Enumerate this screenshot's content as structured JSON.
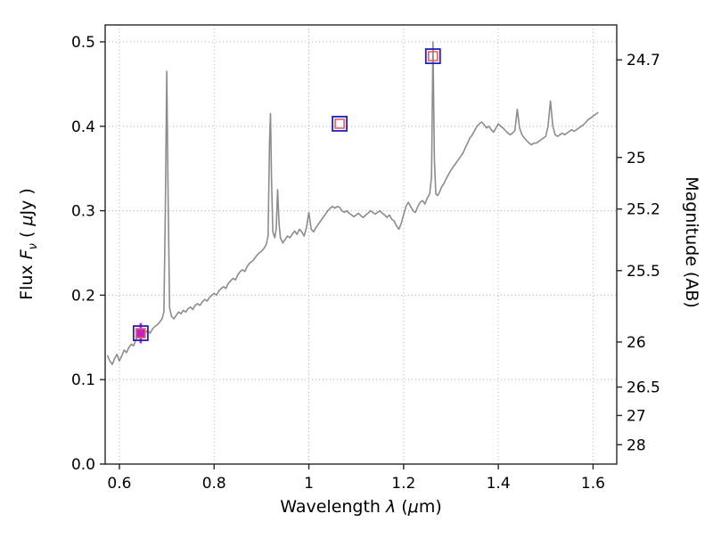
{
  "chart_data": {
    "type": "line",
    "title": "",
    "xlabel_parts": {
      "prefix": "Wavelength ",
      "lambda": "λ",
      "open": " (",
      "mu": "μ",
      "close": "m)"
    },
    "ylabel_left_parts": {
      "prefix": "Flux  ",
      "symbol": "F",
      "subscript": "ν",
      "unit_open": "  ( ",
      "mu": "μ",
      "unit_close": "Jy )"
    },
    "ylabel_right": "Magnitude (AB)",
    "xlim": [
      0.57,
      1.65
    ],
    "ylim_flux": [
      0.0,
      0.52
    ],
    "grid": true,
    "x_ticks": {
      "values": [
        0.6,
        0.8,
        1.0,
        1.2,
        1.4,
        1.6
      ],
      "labels": [
        "0.6",
        "0.8",
        "1",
        "1.2",
        "1.4",
        "1.6"
      ]
    },
    "y_ticks_flux": {
      "values": [
        0.0,
        0.1,
        0.2,
        0.3,
        0.4,
        0.5
      ],
      "labels": [
        "0.0",
        "0.1",
        "0.2",
        "0.3",
        "0.4",
        "0.5"
      ]
    },
    "y_ticks_magnitude": {
      "values": [
        24.7,
        25,
        25.2,
        25.5,
        26,
        26.5,
        27,
        28
      ],
      "labels": [
        "24.7",
        "25",
        "25.2",
        "25.5",
        "26",
        "26.5",
        "27",
        "28"
      ]
    },
    "ab_zeropoint_ujy": 23.9,
    "colors": {
      "spectrum": "#8c8c8c",
      "grid": "#b5b5b5",
      "border": "#262626",
      "marker_outer": "#2020c0",
      "marker_inner": "#e06060",
      "marker_fill": "#c322c3"
    },
    "spectrum": {
      "name": "galaxy-spectrum",
      "points": [
        [
          0.575,
          0.128
        ],
        [
          0.58,
          0.122
        ],
        [
          0.585,
          0.118
        ],
        [
          0.59,
          0.125
        ],
        [
          0.595,
          0.13
        ],
        [
          0.6,
          0.122
        ],
        [
          0.605,
          0.128
        ],
        [
          0.61,
          0.135
        ],
        [
          0.615,
          0.132
        ],
        [
          0.62,
          0.138
        ],
        [
          0.625,
          0.142
        ],
        [
          0.63,
          0.14
        ],
        [
          0.635,
          0.147
        ],
        [
          0.64,
          0.152
        ],
        [
          0.645,
          0.155
        ],
        [
          0.65,
          0.153
        ],
        [
          0.655,
          0.156
        ],
        [
          0.66,
          0.158
        ],
        [
          0.665,
          0.155
        ],
        [
          0.67,
          0.16
        ],
        [
          0.675,
          0.163
        ],
        [
          0.68,
          0.165
        ],
        [
          0.685,
          0.168
        ],
        [
          0.69,
          0.172
        ],
        [
          0.694,
          0.18
        ],
        [
          0.697,
          0.3
        ],
        [
          0.7,
          0.465
        ],
        [
          0.703,
          0.31
        ],
        [
          0.706,
          0.185
        ],
        [
          0.71,
          0.175
        ],
        [
          0.715,
          0.172
        ],
        [
          0.72,
          0.176
        ],
        [
          0.725,
          0.18
        ],
        [
          0.73,
          0.178
        ],
        [
          0.735,
          0.182
        ],
        [
          0.74,
          0.18
        ],
        [
          0.745,
          0.184
        ],
        [
          0.75,
          0.186
        ],
        [
          0.755,
          0.183
        ],
        [
          0.76,
          0.188
        ],
        [
          0.765,
          0.19
        ],
        [
          0.77,
          0.188
        ],
        [
          0.775,
          0.192
        ],
        [
          0.78,
          0.195
        ],
        [
          0.785,
          0.193
        ],
        [
          0.79,
          0.197
        ],
        [
          0.795,
          0.2
        ],
        [
          0.8,
          0.202
        ],
        [
          0.805,
          0.2
        ],
        [
          0.81,
          0.205
        ],
        [
          0.815,
          0.208
        ],
        [
          0.82,
          0.21
        ],
        [
          0.825,
          0.208
        ],
        [
          0.83,
          0.214
        ],
        [
          0.835,
          0.217
        ],
        [
          0.84,
          0.22
        ],
        [
          0.845,
          0.218
        ],
        [
          0.85,
          0.224
        ],
        [
          0.855,
          0.228
        ],
        [
          0.86,
          0.23
        ],
        [
          0.865,
          0.228
        ],
        [
          0.87,
          0.234
        ],
        [
          0.875,
          0.238
        ],
        [
          0.88,
          0.24
        ],
        [
          0.885,
          0.243
        ],
        [
          0.89,
          0.247
        ],
        [
          0.895,
          0.25
        ],
        [
          0.9,
          0.252
        ],
        [
          0.905,
          0.255
        ],
        [
          0.91,
          0.26
        ],
        [
          0.914,
          0.27
        ],
        [
          0.917,
          0.38
        ],
        [
          0.919,
          0.415
        ],
        [
          0.921,
          0.34
        ],
        [
          0.924,
          0.275
        ],
        [
          0.928,
          0.268
        ],
        [
          0.931,
          0.278
        ],
        [
          0.934,
          0.325
        ],
        [
          0.937,
          0.285
        ],
        [
          0.94,
          0.268
        ],
        [
          0.945,
          0.262
        ],
        [
          0.95,
          0.266
        ],
        [
          0.955,
          0.27
        ],
        [
          0.96,
          0.268
        ],
        [
          0.965,
          0.272
        ],
        [
          0.97,
          0.276
        ],
        [
          0.975,
          0.272
        ],
        [
          0.98,
          0.278
        ],
        [
          0.985,
          0.275
        ],
        [
          0.99,
          0.27
        ],
        [
          0.995,
          0.28
        ],
        [
          1.0,
          0.298
        ],
        [
          1.005,
          0.278
        ],
        [
          1.01,
          0.275
        ],
        [
          1.015,
          0.28
        ],
        [
          1.02,
          0.284
        ],
        [
          1.025,
          0.288
        ],
        [
          1.03,
          0.292
        ],
        [
          1.035,
          0.296
        ],
        [
          1.04,
          0.3
        ],
        [
          1.045,
          0.303
        ],
        [
          1.05,
          0.305
        ],
        [
          1.055,
          0.303
        ],
        [
          1.06,
          0.305
        ],
        [
          1.065,
          0.304
        ],
        [
          1.07,
          0.3
        ],
        [
          1.075,
          0.298
        ],
        [
          1.08,
          0.3
        ],
        [
          1.085,
          0.297
        ],
        [
          1.09,
          0.295
        ],
        [
          1.095,
          0.293
        ],
        [
          1.1,
          0.295
        ],
        [
          1.105,
          0.297
        ],
        [
          1.11,
          0.294
        ],
        [
          1.115,
          0.292
        ],
        [
          1.12,
          0.295
        ],
        [
          1.125,
          0.297
        ],
        [
          1.13,
          0.3
        ],
        [
          1.135,
          0.298
        ],
        [
          1.14,
          0.296
        ],
        [
          1.145,
          0.298
        ],
        [
          1.15,
          0.3
        ],
        [
          1.155,
          0.297
        ],
        [
          1.16,
          0.295
        ],
        [
          1.165,
          0.292
        ],
        [
          1.17,
          0.295
        ],
        [
          1.175,
          0.29
        ],
        [
          1.18,
          0.288
        ],
        [
          1.185,
          0.282
        ],
        [
          1.19,
          0.278
        ],
        [
          1.195,
          0.285
        ],
        [
          1.2,
          0.295
        ],
        [
          1.205,
          0.305
        ],
        [
          1.21,
          0.31
        ],
        [
          1.215,
          0.305
        ],
        [
          1.22,
          0.3
        ],
        [
          1.225,
          0.298
        ],
        [
          1.23,
          0.305
        ],
        [
          1.235,
          0.31
        ],
        [
          1.24,
          0.312
        ],
        [
          1.245,
          0.308
        ],
        [
          1.25,
          0.315
        ],
        [
          1.255,
          0.32
        ],
        [
          1.259,
          0.34
        ],
        [
          1.262,
          0.5
        ],
        [
          1.265,
          0.36
        ],
        [
          1.268,
          0.32
        ],
        [
          1.272,
          0.318
        ],
        [
          1.276,
          0.322
        ],
        [
          1.28,
          0.328
        ],
        [
          1.285,
          0.332
        ],
        [
          1.29,
          0.338
        ],
        [
          1.295,
          0.343
        ],
        [
          1.3,
          0.348
        ],
        [
          1.305,
          0.352
        ],
        [
          1.31,
          0.356
        ],
        [
          1.315,
          0.36
        ],
        [
          1.32,
          0.364
        ],
        [
          1.325,
          0.368
        ],
        [
          1.33,
          0.374
        ],
        [
          1.335,
          0.38
        ],
        [
          1.34,
          0.386
        ],
        [
          1.345,
          0.39
        ],
        [
          1.35,
          0.395
        ],
        [
          1.355,
          0.4
        ],
        [
          1.36,
          0.403
        ],
        [
          1.365,
          0.405
        ],
        [
          1.37,
          0.402
        ],
        [
          1.375,
          0.398
        ],
        [
          1.38,
          0.4
        ],
        [
          1.385,
          0.396
        ],
        [
          1.39,
          0.393
        ],
        [
          1.395,
          0.398
        ],
        [
          1.4,
          0.403
        ],
        [
          1.405,
          0.4
        ],
        [
          1.41,
          0.398
        ],
        [
          1.415,
          0.395
        ],
        [
          1.42,
          0.392
        ],
        [
          1.425,
          0.39
        ],
        [
          1.43,
          0.392
        ],
        [
          1.435,
          0.395
        ],
        [
          1.44,
          0.42
        ],
        [
          1.445,
          0.398
        ],
        [
          1.45,
          0.39
        ],
        [
          1.455,
          0.386
        ],
        [
          1.46,
          0.383
        ],
        [
          1.465,
          0.38
        ],
        [
          1.47,
          0.378
        ],
        [
          1.475,
          0.38
        ],
        [
          1.48,
          0.38
        ],
        [
          1.485,
          0.382
        ],
        [
          1.49,
          0.384
        ],
        [
          1.495,
          0.386
        ],
        [
          1.5,
          0.388
        ],
        [
          1.505,
          0.4
        ],
        [
          1.51,
          0.43
        ],
        [
          1.515,
          0.4
        ],
        [
          1.52,
          0.39
        ],
        [
          1.525,
          0.388
        ],
        [
          1.53,
          0.39
        ],
        [
          1.535,
          0.392
        ],
        [
          1.54,
          0.39
        ],
        [
          1.545,
          0.392
        ],
        [
          1.55,
          0.394
        ],
        [
          1.555,
          0.396
        ],
        [
          1.56,
          0.394
        ],
        [
          1.565,
          0.396
        ],
        [
          1.57,
          0.398
        ],
        [
          1.575,
          0.4
        ],
        [
          1.58,
          0.402
        ],
        [
          1.585,
          0.405
        ],
        [
          1.59,
          0.408
        ],
        [
          1.595,
          0.41
        ],
        [
          1.6,
          0.412
        ],
        [
          1.605,
          0.414
        ],
        [
          1.61,
          0.416
        ]
      ]
    },
    "photometry": {
      "name": "photometry-points",
      "points": [
        {
          "x": 0.645,
          "flux": 0.155,
          "filled": true,
          "yerr": 0.012
        },
        {
          "x": 1.065,
          "flux": 0.403,
          "filled": false,
          "yerr": 0
        },
        {
          "x": 1.262,
          "flux": 0.483,
          "filled": false,
          "yerr": 0
        }
      ]
    }
  }
}
